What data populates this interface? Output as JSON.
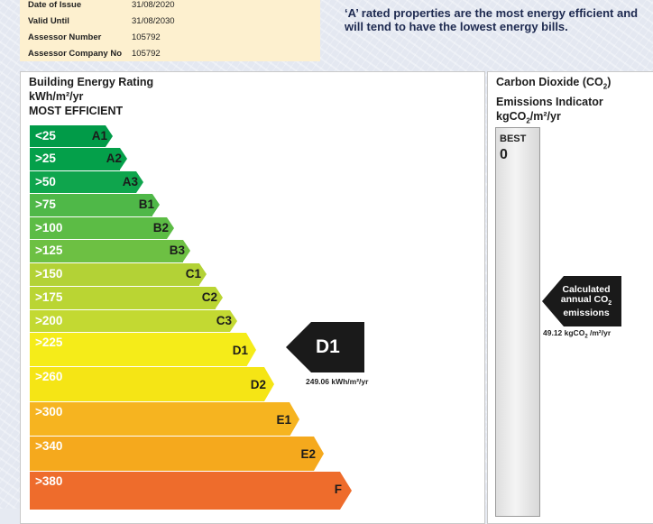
{
  "assessment": {
    "rows": [
      {
        "key": "Date of Issue",
        "value": "31/08/2020"
      },
      {
        "key": "Valid Until",
        "value": "31/08/2030"
      },
      {
        "key": "Assessor Number",
        "value": "105792"
      },
      {
        "key": "Assessor Company No",
        "value": "105792"
      }
    ]
  },
  "note": "‘A’ rated properties are the most energy efficient and will tend to have the lowest energy bills.",
  "ber": {
    "title_line1": "Building Energy Rating",
    "title_line2": "kWh/m²/yr",
    "title_line3": "MOST EFFICIENT",
    "bands": [
      {
        "range": "<25",
        "label": "A1",
        "color": "#019b48"
      },
      {
        "range": ">25",
        "label": "A2",
        "color": "#04a04a"
      },
      {
        "range": ">50",
        "label": "A3",
        "color": "#0fa54d"
      },
      {
        "range": ">75",
        "label": "B1",
        "color": "#4fb848"
      },
      {
        "range": ">100",
        "label": "B2",
        "color": "#5cbc45"
      },
      {
        "range": ">125",
        "label": "B3",
        "color": "#6dc043"
      },
      {
        "range": ">150",
        "label": "C1",
        "color": "#b3d236"
      },
      {
        "range": ">175",
        "label": "C2",
        "color": "#bad533"
      },
      {
        "range": ">200",
        "label": "C3",
        "color": "#c3d932"
      },
      {
        "range": ">225",
        "label": "D1",
        "color": "#f5ec19"
      },
      {
        "range": ">260",
        "label": "D2",
        "color": "#f5e515"
      },
      {
        "range": ">300",
        "label": "E1",
        "color": "#f6b420"
      },
      {
        "range": ">340",
        "label": "E2",
        "color": "#f5a91d"
      },
      {
        "range": ">380",
        "label": "F",
        "color": "#ee6c2c"
      }
    ],
    "current_rating": "D1",
    "current_value": "249.06 kWh/m²/yr"
  },
  "co2": {
    "title_line1": "Carbon Dioxide (CO",
    "title_sub": "2",
    "title_line1_end": ")",
    "title_line2": "Emissions Indicator",
    "title_line3_pre": "kgCO",
    "title_line3_sub": "2",
    "title_line3_post": "/m²/yr",
    "best_label": "BEST",
    "best_value": "0",
    "arrow_line1": "Calculated",
    "arrow_line2_pre": "annual CO",
    "arrow_line2_sub": "2",
    "arrow_line3": "emissions",
    "value_pre": "49.12 kgCO",
    "value_sub": "2",
    "value_post": " /m²/yr"
  }
}
